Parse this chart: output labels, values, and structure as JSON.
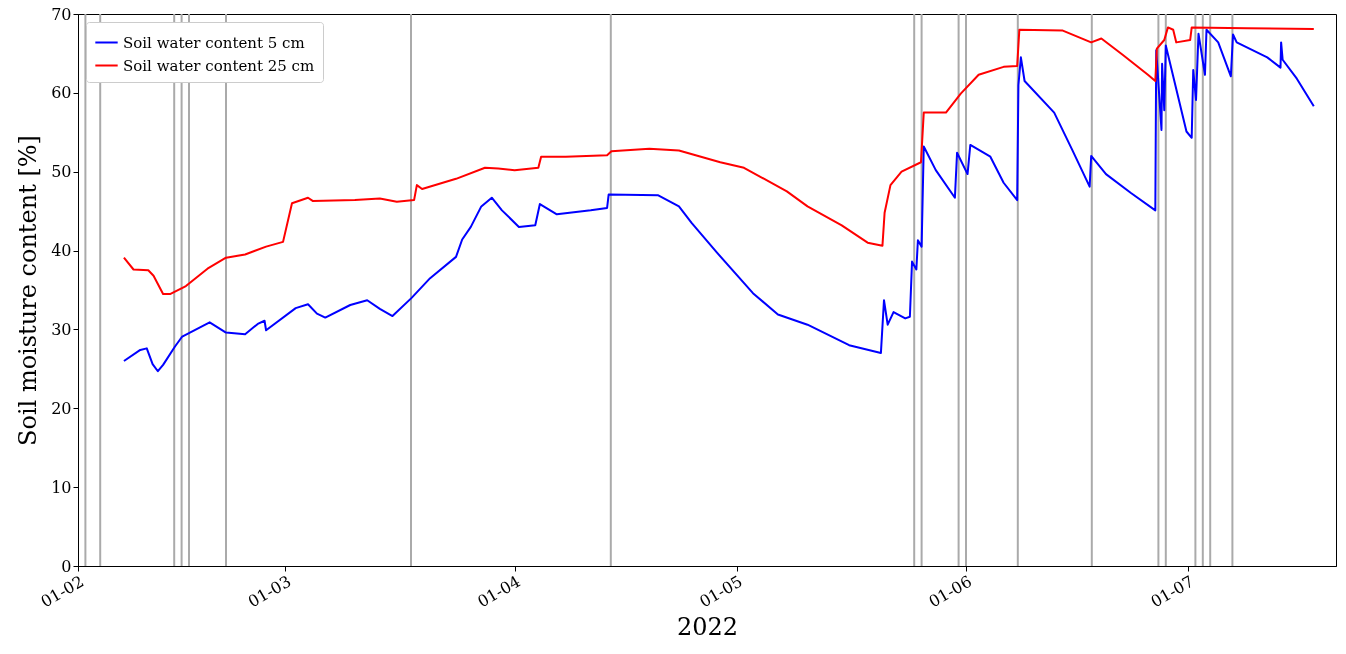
{
  "chart_data": {
    "type": "line",
    "xlabel": "2022",
    "ylabel": "Soil moisture content [%]",
    "xlim": [
      "2022-02-01",
      "2022-07-21"
    ],
    "xticks": [
      {
        "value": "2022-02-01",
        "label": "01-02"
      },
      {
        "value": "2022-03-01",
        "label": "01-03"
      },
      {
        "value": "2022-04-01",
        "label": "01-04"
      },
      {
        "value": "2022-05-01",
        "label": "01-05"
      },
      {
        "value": "2022-06-01",
        "label": "01-06"
      },
      {
        "value": "2022-07-01",
        "label": "01-07"
      }
    ],
    "ylim": [
      0,
      70
    ],
    "yticks": [
      0,
      10,
      20,
      30,
      40,
      50,
      60,
      70
    ],
    "legend": "top left",
    "series": [
      {
        "name": "Soil water content 5 cm",
        "color": "#0000ff",
        "x": [
          "2022-02-07T05:00",
          "2022-02-09T10:00",
          "2022-02-10T07:00",
          "2022-02-11T02:00",
          "2022-02-11T19:00",
          "2022-02-12T12:00",
          "2022-02-14T02:00",
          "2022-02-15T02:00",
          "2022-02-18T19:00",
          "2022-02-21T00:00",
          "2022-02-23T14:00",
          "2022-02-25T07:00",
          "2022-02-26T05:00",
          "2022-02-26T10:00",
          "2022-03-02T10:00",
          "2022-03-04T02:00",
          "2022-03-05T07:00",
          "2022-03-06T10:00",
          "2022-03-09T19:00",
          "2022-03-12T02:00",
          "2022-03-13T19:00",
          "2022-03-15T12:00",
          "2022-03-18T02:00",
          "2022-03-20T14:00",
          "2022-03-24T02:00",
          "2022-03-24T22:00",
          "2022-03-26T02:00",
          "2022-03-27T12:00",
          "2022-03-28T22:00",
          "2022-03-30T07:00",
          "2022-04-01T14:00",
          "2022-04-03T19:00",
          "2022-04-04T10:00",
          "2022-04-06T17:00",
          "2022-04-11T07:00",
          "2022-04-13T12:00",
          "2022-04-13T17:00",
          "2022-04-20T10:00",
          "2022-04-23T05:00",
          "2022-04-24T22:00",
          "2022-04-28T07:00",
          "2022-05-03T05:00",
          "2022-05-06T14:00",
          "2022-05-10T14:00",
          "2022-05-16T05:00",
          "2022-05-20T12:00",
          "2022-05-20T22:00",
          "2022-05-21T10:00",
          "2022-05-22T05:00",
          "2022-05-23T19:00",
          "2022-05-24T10:00",
          "2022-05-24T17:00",
          "2022-05-25T07:00",
          "2022-05-25T12:00",
          "2022-05-26T00:00",
          "2022-05-26T07:00",
          "2022-05-27T22:00",
          "2022-05-30T12:00",
          "2022-05-30T19:00",
          "2022-06-01T05:00",
          "2022-06-01T14:00",
          "2022-06-04T07:00",
          "2022-06-06T02:00",
          "2022-06-07T22:00",
          "2022-06-08T02:00",
          "2022-06-08T10:00",
          "2022-06-08T22:00",
          "2022-06-12T22:00",
          "2022-06-15T07:00",
          "2022-06-17T17:00",
          "2022-06-17T22:00",
          "2022-06-19T22:00",
          "2022-06-23T07:00",
          "2022-06-26T14:00",
          "2022-06-26T17:00",
          "2022-06-27T10:00",
          "2022-06-27T12:00",
          "2022-06-27T19:00",
          "2022-06-28T00:00",
          "2022-06-30T19:00",
          "2022-07-01T12:00",
          "2022-07-01T17:00",
          "2022-07-02T02:00",
          "2022-07-02T10:00",
          "2022-07-03T07:00",
          "2022-07-03T12:00",
          "2022-07-05T02:00",
          "2022-07-06T19:00",
          "2022-07-07T02:00",
          "2022-07-07T14:00",
          "2022-07-11T17:00",
          "2022-07-13T12:00",
          "2022-07-13T14:00",
          "2022-07-13T19:00",
          "2022-07-15T17:00",
          "2022-07-18T00:00"
        ],
        "values": [
          26.0,
          27.4,
          27.6,
          25.6,
          24.7,
          25.5,
          27.8,
          29.1,
          30.9,
          29.6,
          29.4,
          30.7,
          31.1,
          29.9,
          32.7,
          33.2,
          32.0,
          31.5,
          33.1,
          33.7,
          32.6,
          31.7,
          34.0,
          36.5,
          39.2,
          41.4,
          43.0,
          45.6,
          46.7,
          45.1,
          43.0,
          43.2,
          45.9,
          44.6,
          45.1,
          45.4,
          47.1,
          47.0,
          45.6,
          43.5,
          39.8,
          34.6,
          31.9,
          30.6,
          28.0,
          27.0,
          33.7,
          30.6,
          32.2,
          31.4,
          31.6,
          38.6,
          37.6,
          41.3,
          40.5,
          53.2,
          50.2,
          46.7,
          52.4,
          49.7,
          53.4,
          51.9,
          48.6,
          46.4,
          61.0,
          64.5,
          61.5,
          57.5,
          52.9,
          48.1,
          52.0,
          49.7,
          47.3,
          45.1,
          65.4,
          55.3,
          63.7,
          57.8,
          66.0,
          55.1,
          54.3,
          62.9,
          59.1,
          67.5,
          62.3,
          68.0,
          66.4,
          62.1,
          67.4,
          66.4,
          64.5,
          63.2,
          66.4,
          64.2,
          61.8,
          58.3
        ]
      },
      {
        "name": "Soil water content 25 cm",
        "color": "#ff0000",
        "x": [
          "2022-02-07T05:00",
          "2022-02-08T12:00",
          "2022-02-10T12:00",
          "2022-02-11T05:00",
          "2022-02-12T12:00",
          "2022-02-13T12:00",
          "2022-02-15T14:00",
          "2022-02-18T12:00",
          "2022-02-21T00:00",
          "2022-02-23T14:00",
          "2022-02-26T10:00",
          "2022-02-28T17:00",
          "2022-03-01T22:00",
          "2022-03-04T02:00",
          "2022-03-04T17:00",
          "2022-03-10T10:00",
          "2022-03-13T19:00",
          "2022-03-16T02:00",
          "2022-03-18T10:00",
          "2022-03-18T19:00",
          "2022-03-19T12:00",
          "2022-03-24T02:00",
          "2022-03-28T00:00",
          "2022-03-29T19:00",
          "2022-04-01T00:00",
          "2022-04-04T05:00",
          "2022-04-04T14:00",
          "2022-04-07T22:00",
          "2022-04-13T12:00",
          "2022-04-14T02:00",
          "2022-04-19T05:00",
          "2022-04-23T05:00",
          "2022-04-28T19:00",
          "2022-05-02T00:00",
          "2022-05-07T19:00",
          "2022-05-10T14:00",
          "2022-05-15T05:00",
          "2022-05-18T17:00",
          "2022-05-20T17:00",
          "2022-05-21T00:00",
          "2022-05-21T19:00",
          "2022-05-23T07:00",
          "2022-05-25T22:00",
          "2022-05-26T07:00",
          "2022-05-29T07:00",
          "2022-05-31T07:00",
          "2022-06-02T17:00",
          "2022-06-06T02:00",
          "2022-06-07T22:00",
          "2022-06-08T05:00",
          "2022-06-14T02:00",
          "2022-06-17T22:00",
          "2022-06-19T07:00",
          "2022-06-22T05:00",
          "2022-06-25T14:00",
          "2022-06-26T14:00",
          "2022-06-26T19:00",
          "2022-06-27T19:00",
          "2022-06-28T07:00",
          "2022-06-29T00:00",
          "2022-06-29T10:00",
          "2022-07-01T07:00",
          "2022-07-01T12:00",
          "2022-07-09T00:00",
          "2022-07-18T00:00"
        ],
        "values": [
          39.1,
          37.6,
          37.5,
          36.8,
          34.5,
          34.5,
          35.5,
          37.7,
          39.1,
          39.5,
          40.5,
          41.1,
          46.0,
          46.7,
          46.3,
          46.4,
          46.6,
          46.2,
          46.4,
          48.3,
          47.8,
          49.1,
          50.5,
          50.4,
          50.2,
          50.5,
          51.9,
          51.9,
          52.1,
          52.6,
          52.9,
          52.7,
          51.2,
          50.5,
          47.5,
          45.6,
          43.2,
          41.0,
          40.6,
          44.8,
          48.3,
          50.0,
          51.2,
          57.5,
          57.5,
          59.9,
          62.3,
          63.3,
          63.4,
          68.0,
          67.9,
          66.4,
          66.9,
          64.8,
          62.3,
          61.5,
          65.6,
          66.7,
          68.3,
          68.0,
          66.4,
          66.7,
          68.3,
          68.2,
          68.1
        ]
      }
    ],
    "ref_lines": [
      {
        "axis": "x",
        "value": "2022-02-02",
        "color": "#aaaaaa"
      },
      {
        "axis": "x",
        "value": "2022-02-04",
        "color": "#aaaaaa"
      },
      {
        "axis": "x",
        "value": "2022-02-14",
        "color": "#aaaaaa"
      },
      {
        "axis": "x",
        "value": "2022-02-15",
        "color": "#aaaaaa"
      },
      {
        "axis": "x",
        "value": "2022-02-16",
        "color": "#aaaaaa"
      },
      {
        "axis": "x",
        "value": "2022-02-21",
        "color": "#aaaaaa"
      },
      {
        "axis": "x",
        "value": "2022-03-18",
        "color": "#aaaaaa"
      },
      {
        "axis": "x",
        "value": "2022-04-14",
        "color": "#aaaaaa"
      },
      {
        "axis": "x",
        "value": "2022-05-25",
        "color": "#aaaaaa"
      },
      {
        "axis": "x",
        "value": "2022-05-26",
        "color": "#aaaaaa"
      },
      {
        "axis": "x",
        "value": "2022-05-31",
        "color": "#aaaaaa"
      },
      {
        "axis": "x",
        "value": "2022-06-01",
        "color": "#aaaaaa"
      },
      {
        "axis": "x",
        "value": "2022-06-08",
        "color": "#aaaaaa"
      },
      {
        "axis": "x",
        "value": "2022-06-18",
        "color": "#aaaaaa"
      },
      {
        "axis": "x",
        "value": "2022-06-27",
        "color": "#aaaaaa"
      },
      {
        "axis": "x",
        "value": "2022-06-28",
        "color": "#aaaaaa"
      },
      {
        "axis": "x",
        "value": "2022-07-02",
        "color": "#aaaaaa"
      },
      {
        "axis": "x",
        "value": "2022-07-03",
        "color": "#aaaaaa"
      },
      {
        "axis": "x",
        "value": "2022-07-04",
        "color": "#aaaaaa"
      },
      {
        "axis": "x",
        "value": "2022-07-07",
        "color": "#aaaaaa"
      }
    ]
  }
}
